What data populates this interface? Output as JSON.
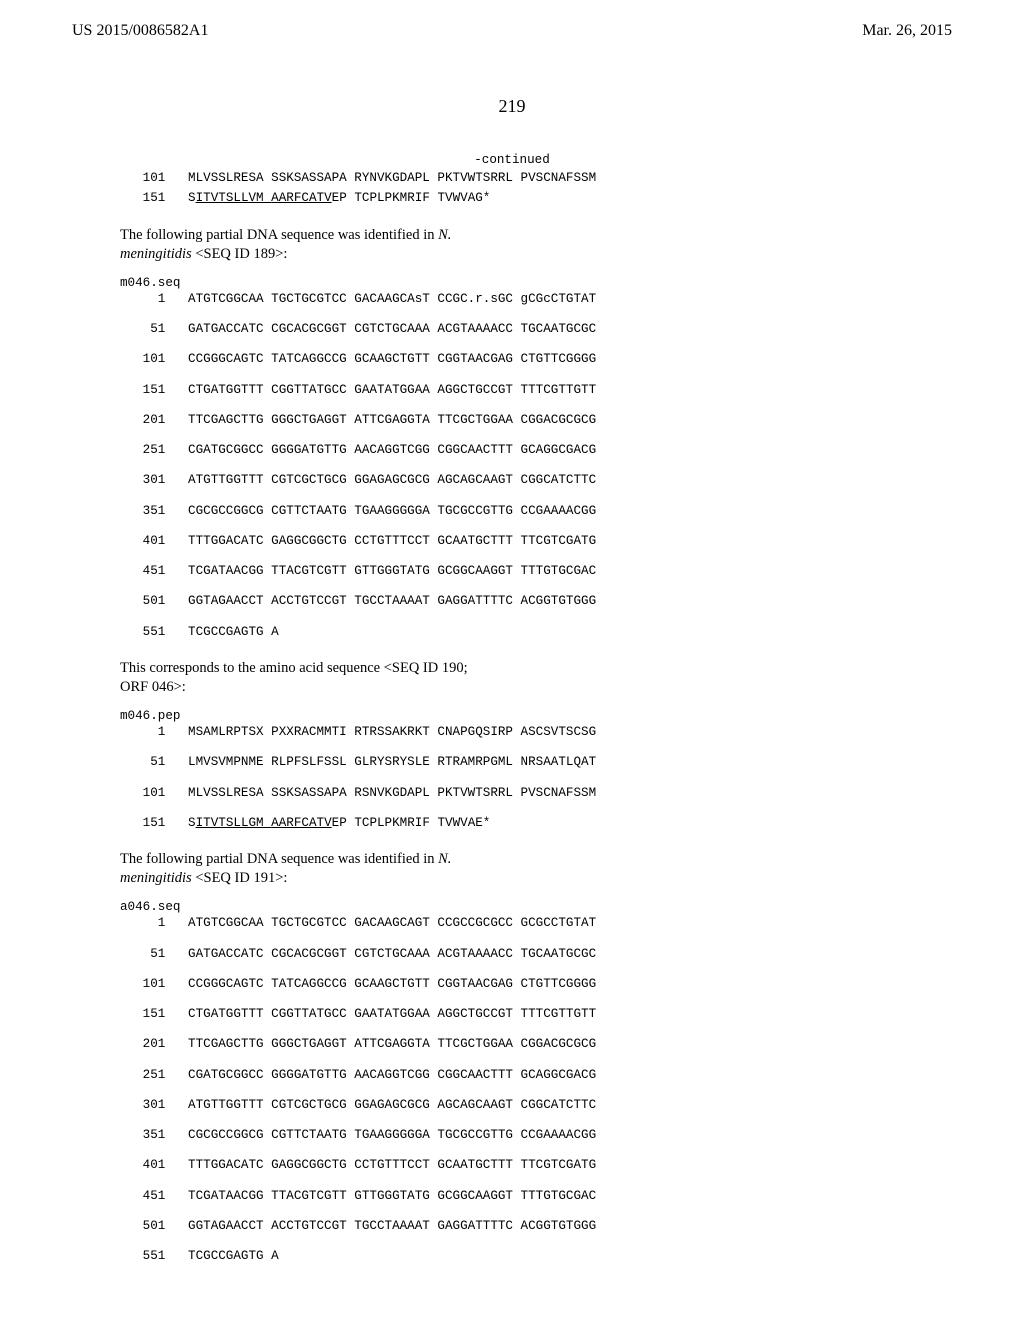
{
  "header": {
    "left": "US 2015/0086582A1",
    "right": "Mar. 26, 2015"
  },
  "page_number": "219",
  "continued_label": "-continued",
  "block1": {
    "rows": [
      {
        "n": "101",
        "a": "MLVSSLRESA",
        "b": "SSKSASSAPA",
        "c": "RYNVKGDAPL",
        "d": "PKTVWTSRRL",
        "e": "PVSCNAFSSM"
      },
      {
        "n": "151",
        "a_pre": "S",
        "a_u": "ITVTSLLVM ",
        "b_u": "AARFCATV",
        "b_post": "EP",
        "c": "TCPLPKMRIF",
        "d": "TVWVAG*",
        "e": ""
      }
    ]
  },
  "para1": {
    "line1_a": "The following partial DNA sequence was identified in ",
    "line1_b": "N.",
    "line2_a": "meningitidis ",
    "line2_b": "<SEQ ID 189>:"
  },
  "label1": "m046.seq",
  "block2": {
    "rows": [
      {
        "n": "  1",
        "a": "ATGTCGGCAA",
        "b": "TGCTGCGTCC",
        "c": "GACAAGCAsT",
        "d": "CCGC.r.sGC",
        "e": "gCGcCTGTAT"
      },
      {
        "n": " 51",
        "a": "GATGACCATC",
        "b": "CGCACGCGGT",
        "c": "CGTCTGCAAA",
        "d": "ACGTAAAACC",
        "e": "TGCAATGCGC"
      },
      {
        "n": "101",
        "a": "CCGGGCAGTC",
        "b": "TATCAGGCCG",
        "c": "GCAAGCTGTT",
        "d": "CGGTAACGAG",
        "e": "CTGTTCGGGG"
      },
      {
        "n": "151",
        "a": "CTGATGGTTT",
        "b": "CGGTTATGCC",
        "c": "GAATATGGAA",
        "d": "AGGCTGCCGT",
        "e": "TTTCGTTGTT"
      },
      {
        "n": "201",
        "a": "TTCGAGCTTG",
        "b": "GGGCTGAGGT",
        "c": "ATTCGAGGTA",
        "d": "TTCGCTGGAA",
        "e": "CGGACGCGCG"
      },
      {
        "n": "251",
        "a": "CGATGCGGCC",
        "b": "GGGGATGTTG",
        "c": "AACAGGTCGG",
        "d": "CGGCAACTTT",
        "e": "GCAGGCGACG"
      },
      {
        "n": "301",
        "a": "ATGTTGGTTT",
        "b": "CGTCGCTGCG",
        "c": "GGAGAGCGCG",
        "d": "AGCAGCAAGT",
        "e": "CGGCATCTTC"
      },
      {
        "n": "351",
        "a": "CGCGCCGGCG",
        "b": "CGTTCTAATG",
        "c": "TGAAGGGGGA",
        "d": "TGCGCCGTTG",
        "e": "CCGAAAACGG"
      },
      {
        "n": "401",
        "a": "TTTGGACATC",
        "b": "GAGGCGGCTG",
        "c": "CCTGTTTCCT",
        "d": "GCAATGCTTT",
        "e": "TTCGTCGATG"
      },
      {
        "n": "451",
        "a": "TCGATAACGG",
        "b": "TTACGTCGTT",
        "c": "GTTGGGTATG",
        "d": "GCGGCAAGGT",
        "e": "TTTGTGCGAC"
      },
      {
        "n": "501",
        "a": "GGTAGAACCT",
        "b": "ACCTGTCCGT",
        "c": "TGCCTAAAAT",
        "d": "GAGGATTTTC",
        "e": "ACGGTGTGGG"
      },
      {
        "n": "551",
        "a": "TCGCCGAGTG",
        "b": "A",
        "c": "",
        "d": "",
        "e": ""
      }
    ]
  },
  "para2": {
    "line1": "This corresponds to the amino acid sequence <SEQ ID 190;",
    "line2": "ORF 046>:"
  },
  "label2": "m046.pep",
  "block3": {
    "rows": [
      {
        "n": "  1",
        "a": "MSAMLRPTSX",
        "b": "PXXRACMMTI",
        "c": "RTRSSAKRKT",
        "d": "CNAPGQSIRP",
        "e": "ASCSVTSCSG"
      },
      {
        "n": " 51",
        "a": "LMVSVMPNME",
        "b": "RLPFSLFSSL",
        "c": "GLRYSRYSLE",
        "d": "RTRAMRPGML",
        "e": "NRSAATLQAT"
      },
      {
        "n": "101",
        "a": "MLVSSLRESA",
        "b": "SSKSASSAPA",
        "c": "RSNVKGDAPL",
        "d": "PKTVWTSRRL",
        "e": "PVSCNAFSSM"
      },
      {
        "n": "151",
        "a_pre": "S",
        "a_u": "ITVTSLLGM ",
        "b_u": "AARFCATV",
        "b_post": "EP",
        "c": "TCPLPKMRIF",
        "d": "TVWVAE*",
        "e": ""
      }
    ]
  },
  "para3": {
    "line1_a": "The following partial DNA sequence was identified in ",
    "line1_b": "N.",
    "line2_a": "meningitidis ",
    "line2_b": "<SEQ ID 191>:"
  },
  "label3": "a046.seq",
  "block4": {
    "rows": [
      {
        "n": "  1",
        "a": "ATGTCGGCAA",
        "b": "TGCTGCGTCC",
        "c": "GACAAGCAGT",
        "d": "CCGCCGCGCC",
        "e": "GCGCCTGTAT"
      },
      {
        "n": " 51",
        "a": "GATGACCATC",
        "b": "CGCACGCGGT",
        "c": "CGTCTGCAAA",
        "d": "ACGTAAAACC",
        "e": "TGCAATGCGC"
      },
      {
        "n": "101",
        "a": "CCGGGCAGTC",
        "b": "TATCAGGCCG",
        "c": "GCAAGCTGTT",
        "d": "CGGTAACGAG",
        "e": "CTGTTCGGGG"
      },
      {
        "n": "151",
        "a": "CTGATGGTTT",
        "b": "CGGTTATGCC",
        "c": "GAATATGGAA",
        "d": "AGGCTGCCGT",
        "e": "TTTCGTTGTT"
      },
      {
        "n": "201",
        "a": "TTCGAGCTTG",
        "b": "GGGCTGAGGT",
        "c": "ATTCGAGGTA",
        "d": "TTCGCTGGAA",
        "e": "CGGACGCGCG"
      },
      {
        "n": "251",
        "a": "CGATGCGGCC",
        "b": "GGGGATGTTG",
        "c": "AACAGGTCGG",
        "d": "CGGCAACTTT",
        "e": "GCAGGCGACG"
      },
      {
        "n": "301",
        "a": "ATGTTGGTTT",
        "b": "CGTCGCTGCG",
        "c": "GGAGAGCGCG",
        "d": "AGCAGCAAGT",
        "e": "CGGCATCTTC"
      },
      {
        "n": "351",
        "a": "CGCGCCGGCG",
        "b": "CGTTCTAATG",
        "c": "TGAAGGGGGA",
        "d": "TGCGCCGTTG",
        "e": "CCGAAAACGG"
      },
      {
        "n": "401",
        "a": "TTTGGACATC",
        "b": "GAGGCGGCTG",
        "c": "CCTGTTTCCT",
        "d": "GCAATGCTTT",
        "e": "TTCGTCGATG"
      },
      {
        "n": "451",
        "a": "TCGATAACGG",
        "b": "TTACGTCGTT",
        "c": "GTTGGGTATG",
        "d": "GCGGCAAGGT",
        "e": "TTTGTGCGAC"
      },
      {
        "n": "501",
        "a": "GGTAGAACCT",
        "b": "ACCTGTCCGT",
        "c": "TGCCTAAAAT",
        "d": "GAGGATTTTC",
        "e": "ACGGTGTGGG"
      },
      {
        "n": "551",
        "a": "TCGCCGAGTG",
        "b": "A",
        "c": "",
        "d": "",
        "e": ""
      }
    ]
  }
}
